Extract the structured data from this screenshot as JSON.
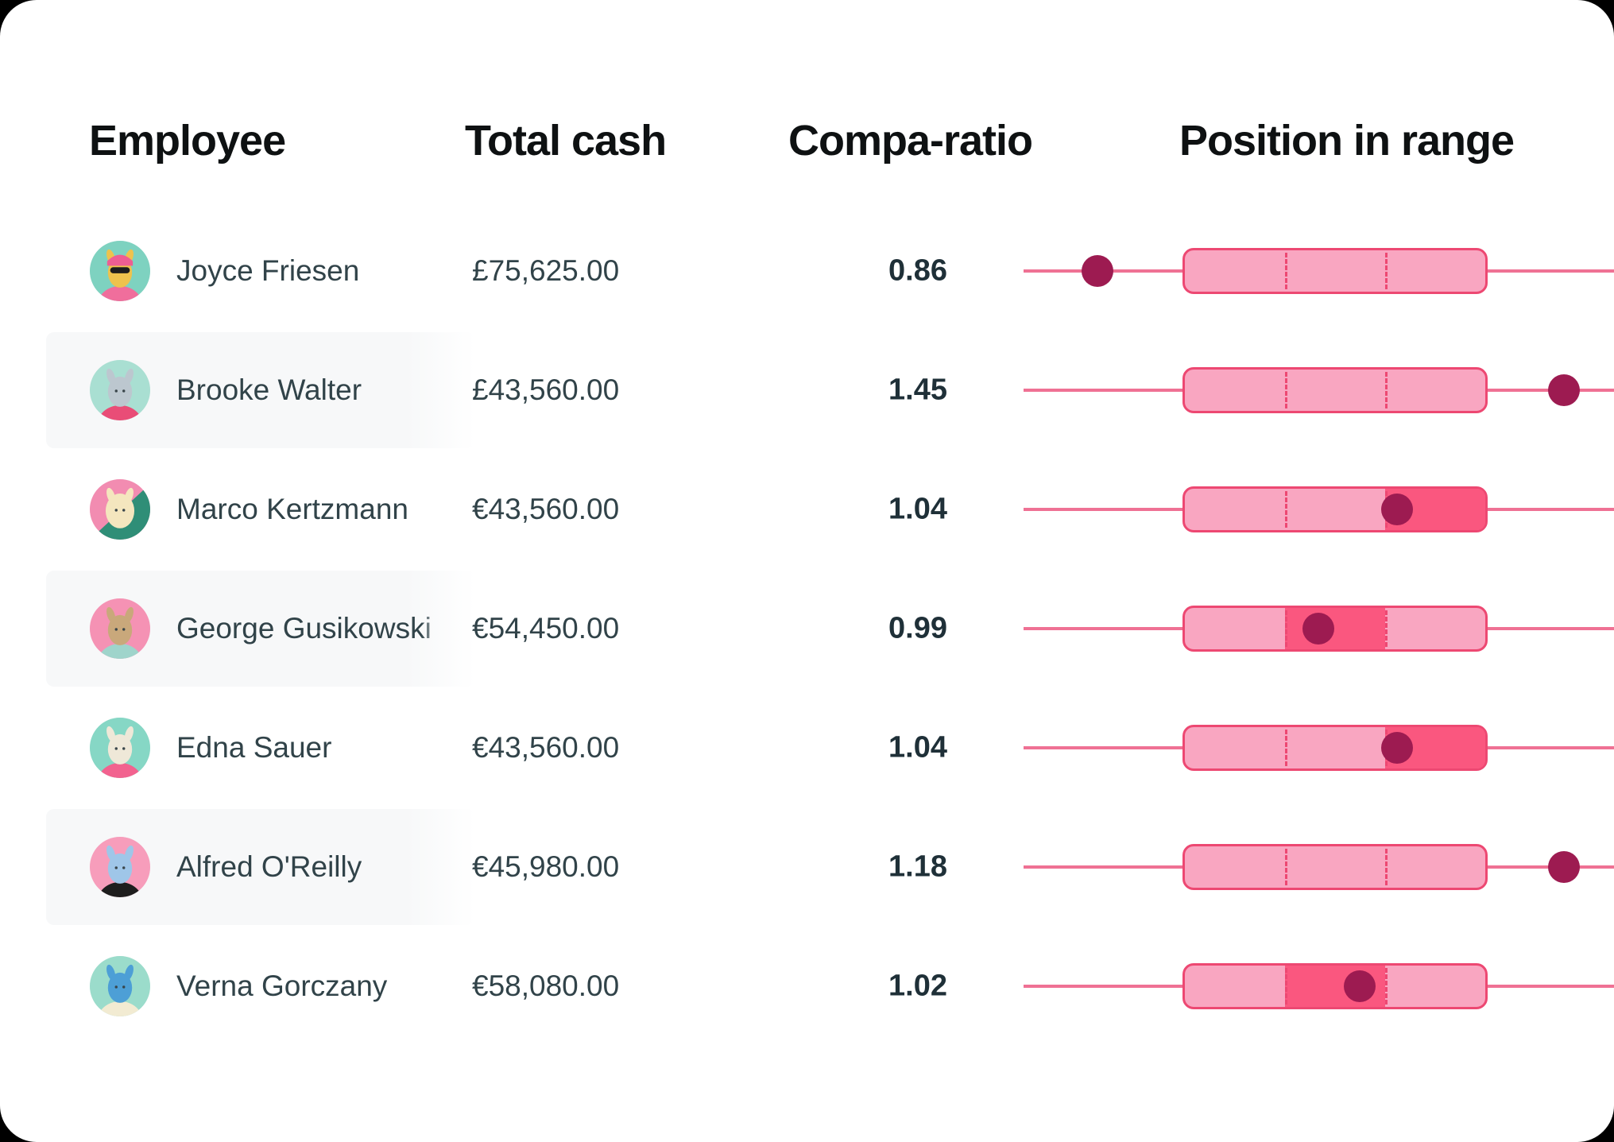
{
  "table": {
    "columns": [
      {
        "label": "Employee"
      },
      {
        "label": "Total cash"
      },
      {
        "label": "Compa-ratio"
      },
      {
        "label": "Position in range"
      }
    ],
    "rows": [
      {
        "name": "Joyce Friesen",
        "total_cash": "£75,625.00",
        "compa_ratio": "0.86",
        "striped": false,
        "position_in_range": {
          "dot_percent": 12.5,
          "highlighted_segment": null
        },
        "avatar": {
          "bg": "#7ED2C0",
          "head": "#EEC24D",
          "shirt": "#F06E9C",
          "hat": "#EE5E92",
          "glasses": true
        }
      },
      {
        "name": "Brooke Walter",
        "total_cash": "£43,560.00",
        "compa_ratio": "1.45",
        "striped": true,
        "position_in_range": {
          "dot_percent": 91.5,
          "highlighted_segment": null
        },
        "avatar": {
          "bg": "#A9DFD2",
          "head": "#BCC7CF",
          "shirt": "#E94D77"
        }
      },
      {
        "name": "Marco Kertzmann",
        "total_cash": "€43,560.00",
        "compa_ratio": "1.04",
        "striped": false,
        "position_in_range": {
          "dot_percent": 63.3,
          "highlighted_segment": 3
        },
        "avatar": {
          "bg": "#F28CB1",
          "bg2": "#2F8E77",
          "head": "#F4E6BE"
        }
      },
      {
        "name": "George Gusikowski",
        "total_cash": "€54,450.00",
        "compa_ratio": "0.99",
        "striped": true,
        "position_in_range": {
          "dot_percent": 49.9,
          "highlighted_segment": 2
        },
        "avatar": {
          "bg": "#F592B4",
          "head": "#C9A87B",
          "shirt": "#9FD4CB"
        }
      },
      {
        "name": "Edna Sauer",
        "total_cash": "€43,560.00",
        "compa_ratio": "1.04",
        "striped": false,
        "position_in_range": {
          "dot_percent": 63.3,
          "highlighted_segment": 3
        },
        "avatar": {
          "bg": "#86D7C5",
          "head": "#EFE8D8",
          "shirt": "#F2628F"
        }
      },
      {
        "name": "Alfred O'Reilly",
        "total_cash": "€45,980.00",
        "compa_ratio": "1.18",
        "striped": true,
        "position_in_range": {
          "dot_percent": 91.5,
          "highlighted_segment": null
        },
        "avatar": {
          "bg": "#F79DBB",
          "head": "#9FC6E8",
          "shirt": "#1E1E1E"
        }
      },
      {
        "name": "Verna Gorczany",
        "total_cash": "€58,080.00",
        "compa_ratio": "1.02",
        "striped": false,
        "position_in_range": {
          "dot_percent": 56.9,
          "highlighted_segment": 2
        },
        "avatar": {
          "bg": "#9BDCCB",
          "head": "#4D9FD6",
          "shirt": "#F2EBD2"
        }
      }
    ]
  },
  "range_track": {
    "box_start_percent": 26.9,
    "box_end_percent": 78.6,
    "segments": 3
  },
  "colors": {
    "box_fill": "#F9A6C1",
    "box_border": "#ED4872",
    "line": "#EF7194",
    "dot": "#9D1B51",
    "segment_highlight": "#FA577F",
    "row_stripe": "#F7F8F9"
  }
}
